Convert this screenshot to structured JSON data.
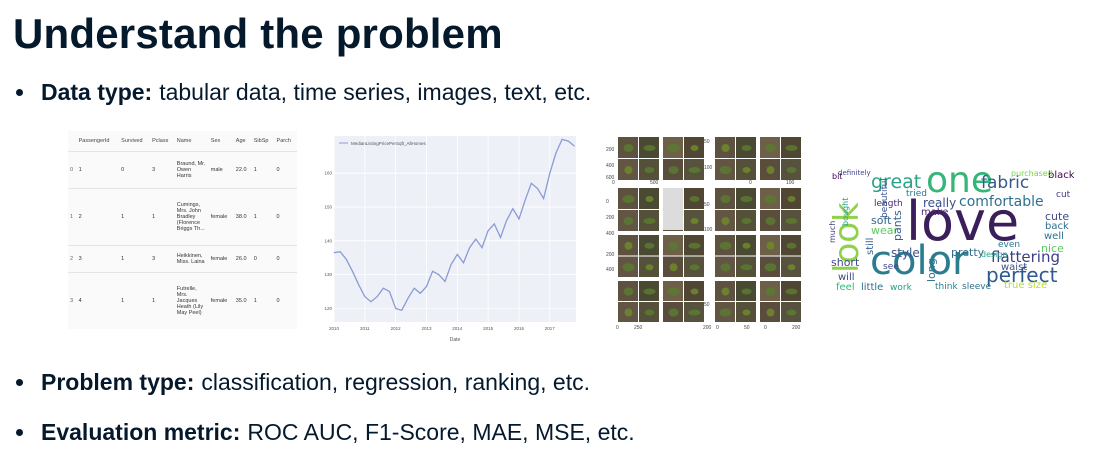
{
  "title": "Understand the problem",
  "bullets": [
    {
      "label": "Data type:",
      "text": "tabular data, time series, images, text, etc."
    },
    {
      "label": "Problem type:",
      "text": "classification, regression, ranking, etc."
    },
    {
      "label": "Evaluation metric:",
      "text": "ROC AUC, F1-Score, MAE, MSE, etc."
    }
  ],
  "table": {
    "columns": [
      "",
      "PassengerId",
      "Survived",
      "Pclass",
      "Name",
      "Sex",
      "Age",
      "SibSp",
      "Parch"
    ],
    "rows": [
      [
        "0",
        "1",
        "0",
        "3",
        "Braund, Mr. Owen Harris",
        "male",
        "22.0",
        "1",
        "0"
      ],
      [
        "1",
        "2",
        "1",
        "1",
        "Cumings, Mrs. John Bradley (Florence Briggs Th...",
        "female",
        "38.0",
        "1",
        "0"
      ],
      [
        "2",
        "3",
        "1",
        "3",
        "Heikkinen, Miss. Laina",
        "female",
        "26.0",
        "0",
        "0"
      ],
      [
        "3",
        "4",
        "1",
        "1",
        "Futrelle, Mrs. Jacques Heath (Lily May Peel)",
        "female",
        "35.0",
        "1",
        "0"
      ]
    ]
  },
  "chart_data": {
    "type": "line",
    "title": "",
    "series": [
      {
        "name": "MedianListingPricePerSqft_AllHomes",
        "color": "#8a9bd6"
      }
    ],
    "x": [
      2010.0,
      2010.2,
      2010.4,
      2010.6,
      2010.8,
      2011.0,
      2011.2,
      2011.4,
      2011.6,
      2011.8,
      2012.0,
      2012.2,
      2012.4,
      2012.6,
      2012.8,
      2013.0,
      2013.2,
      2013.4,
      2013.6,
      2013.8,
      2014.0,
      2014.2,
      2014.4,
      2014.6,
      2014.8,
      2015.0,
      2015.2,
      2015.4,
      2015.6,
      2015.8,
      2016.0,
      2016.2,
      2016.4,
      2016.6,
      2016.8,
      2017.0,
      2017.2,
      2017.4,
      2017.6,
      2017.8
    ],
    "y": [
      136.5,
      136.8,
      134.5,
      131,
      127,
      123.5,
      122,
      123.5,
      126,
      125,
      120,
      119.5,
      123,
      126,
      124.5,
      126.5,
      131,
      130,
      128,
      133,
      136,
      133.5,
      138,
      140.5,
      138,
      143,
      145,
      141,
      146,
      149.5,
      146.5,
      152,
      157,
      155.5,
      152.5,
      160,
      166,
      170,
      169.5,
      168
    ],
    "xticks": [
      "2010",
      "2011",
      "2012",
      "2013",
      "2014",
      "2015",
      "2016",
      "2017"
    ],
    "xtick_values": [
      2010,
      2011,
      2012,
      2013,
      2014,
      2015,
      2016,
      2017
    ],
    "yticks": [
      "120",
      "130",
      "140",
      "150",
      "160"
    ],
    "ytick_values": [
      120,
      130,
      140,
      150,
      160
    ],
    "xlabel": "Date",
    "ylabel": "",
    "xlim": [
      2010,
      2017.85
    ],
    "ylim": [
      116,
      171
    ],
    "grid": true,
    "background": "#eef0f7",
    "legend_position": "top-left"
  },
  "image_grid": {
    "tick_labels_row": [
      "0",
      "500",
      "0",
      "100"
    ],
    "tick_labels_left": [
      "0",
      "200",
      "400",
      "600"
    ],
    "tick_labels_mid": [
      "0",
      "50",
      "100"
    ],
    "bottom_ticks": [
      "0",
      "250",
      "200",
      "0",
      "50",
      "0",
      "200"
    ]
  },
  "word_cloud": {
    "words": [
      {
        "t": "love",
        "c": "#3b1f5a"
      },
      {
        "t": "color",
        "c": "#2b7d8e"
      },
      {
        "t": "one",
        "c": "#34b679"
      },
      {
        "t": "look",
        "c": "#8fd14a"
      },
      {
        "t": "perfect",
        "c": "#2e5a8e"
      },
      {
        "t": "comfortable",
        "c": "#2f6f8e"
      },
      {
        "t": "fabric",
        "c": "#38588c"
      },
      {
        "t": "great",
        "c": "#29a386"
      },
      {
        "t": "flattering",
        "c": "#3a3f87"
      },
      {
        "t": "really",
        "c": "#3a4f8a"
      },
      {
        "t": "cute",
        "c": "#3e4a89"
      },
      {
        "t": "back",
        "c": "#2e6f8e"
      },
      {
        "t": "well",
        "c": "#2d708e"
      },
      {
        "t": "nice",
        "c": "#5bc862"
      },
      {
        "t": "short",
        "c": "#3e4989"
      },
      {
        "t": "will",
        "c": "#414487"
      },
      {
        "t": "pretty",
        "c": "#2e6e8e"
      },
      {
        "t": "style",
        "c": "#3b518b"
      },
      {
        "t": "soft",
        "c": "#31688e"
      },
      {
        "t": "wear",
        "c": "#5ec962"
      },
      {
        "t": "make",
        "c": "#482677"
      },
      {
        "t": "feel",
        "c": "#35b779"
      },
      {
        "t": "little",
        "c": "#2e6e8e"
      },
      {
        "t": "work",
        "c": "#1f9e89"
      },
      {
        "t": "think",
        "c": "#26828e"
      },
      {
        "t": "sleeve",
        "c": "#2c728e"
      },
      {
        "t": "true size",
        "c": "#b5de2b"
      },
      {
        "t": "waist",
        "c": "#3b528b"
      },
      {
        "t": "long",
        "c": "#2c728e"
      },
      {
        "t": "black",
        "c": "#440154"
      },
      {
        "t": "cut",
        "c": "#443983"
      },
      {
        "t": "purchased",
        "c": "#7ad151"
      },
      {
        "t": "length",
        "c": "#482878"
      },
      {
        "t": "tried",
        "c": "#2a788e"
      },
      {
        "t": "pants",
        "c": "#355f8d"
      },
      {
        "t": "see",
        "c": "#3e4989"
      },
      {
        "t": "even",
        "c": "#2a788e"
      },
      {
        "t": "design",
        "c": "#22a884"
      },
      {
        "t": "definitely",
        "c": "#404688"
      },
      {
        "t": "beautiful",
        "c": "#3b528b"
      },
      {
        "t": "still",
        "c": "#34618d"
      },
      {
        "t": "bit",
        "c": "#440154"
      },
      {
        "t": "much",
        "c": "#414487"
      },
      {
        "t": "bought",
        "c": "#20a386"
      }
    ]
  }
}
